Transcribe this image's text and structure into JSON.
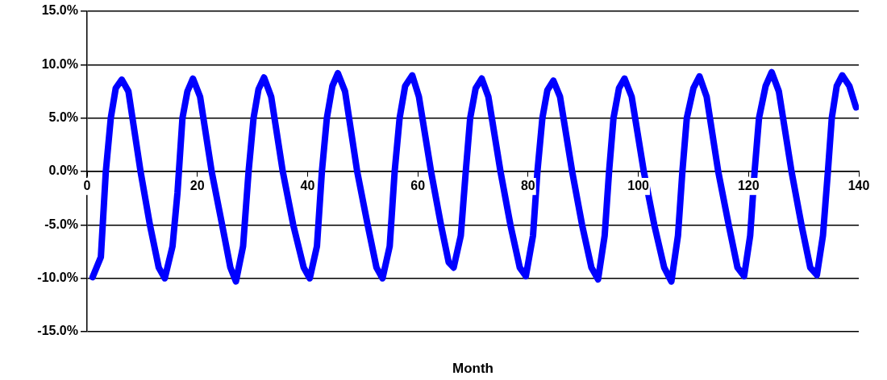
{
  "chart_data": {
    "type": "line",
    "xlabel": "Month",
    "color": "#0000ff",
    "marker": "none",
    "line_style": "solid",
    "grid": "y",
    "xlim": [
      0,
      140
    ],
    "xticks": [
      0,
      20,
      40,
      60,
      80,
      100,
      120,
      140
    ],
    "ylim": [
      -15,
      15
    ],
    "yticks": [
      {
        "value": -15,
        "label": "-15.0%"
      },
      {
        "value": -10,
        "label": "-10.0%"
      },
      {
        "value": -5,
        "label": "-5.0%"
      },
      {
        "value": 0,
        "label": "0.0%"
      },
      {
        "value": 5,
        "label": "5.0%"
      },
      {
        "value": 10,
        "label": "10.0%"
      },
      {
        "value": 15,
        "label": "15.0%"
      }
    ],
    "x": [
      1,
      2.5,
      3.4,
      4.3,
      5.2,
      6.3,
      7.5,
      9.7,
      11.4,
      13,
      14.1,
      15.5,
      16.4,
      17.3,
      18.2,
      19.2,
      20.5,
      22.6,
      24.5,
      26,
      27,
      28.3,
      29.3,
      30.2,
      31.1,
      32.1,
      33.4,
      35.5,
      37.4,
      39.3,
      40.4,
      41.7,
      42.6,
      43.5,
      44.5,
      45.5,
      46.8,
      49,
      50.9,
      52.5,
      53.6,
      54.9,
      55.8,
      56.7,
      57.7,
      59,
      60.2,
      62.4,
      64.2,
      65.6,
      66.5,
      67.8,
      68.7,
      69.5,
      70.5,
      71.6,
      72.8,
      75,
      76.8,
      78.5,
      79.6,
      80.9,
      81.7,
      82.6,
      83.5,
      84.6,
      85.8,
      88,
      89.8,
      91.5,
      92.7,
      93.9,
      94.7,
      95.5,
      96.5,
      97.5,
      98.8,
      101,
      102.9,
      104.7,
      106,
      107.2,
      108,
      108.8,
      110,
      111.1,
      112.4,
      114.5,
      116.4,
      118,
      119.2,
      120.3,
      121.1,
      121.9,
      123.1,
      124.2,
      125.5,
      127.8,
      129.6,
      131.2,
      132.4,
      133.5,
      134.4,
      135.1,
      136,
      137,
      138.3,
      139.5
    ],
    "values": [
      -9.9,
      -8,
      0,
      5,
      7.8,
      8.6,
      7.5,
      0,
      -5,
      -9,
      -10,
      -7,
      -2,
      5,
      7.5,
      8.7,
      7,
      0,
      -5,
      -9,
      -10.3,
      -7,
      0,
      5,
      7.7,
      8.8,
      7,
      0,
      -5,
      -9,
      -10,
      -7,
      0,
      5,
      8,
      9.2,
      7.5,
      0,
      -5,
      -9,
      -10,
      -7,
      0,
      5,
      8,
      9,
      7,
      0,
      -5,
      -8.5,
      -9,
      -6,
      0,
      5,
      7.8,
      8.7,
      7,
      0,
      -5,
      -9,
      -9.8,
      -6,
      0,
      5,
      7.6,
      8.5,
      7,
      0,
      -5,
      -9,
      -10.1,
      -6,
      0,
      5,
      7.8,
      8.7,
      7,
      0,
      -5,
      -9,
      -10.3,
      -6,
      0,
      5,
      7.8,
      8.9,
      7,
      0,
      -5,
      -9,
      -9.8,
      -6,
      0,
      5,
      8,
      9.3,
      7.5,
      0,
      -5,
      -9,
      -9.7,
      -6,
      0,
      5,
      8,
      9,
      8,
      6
    ]
  }
}
